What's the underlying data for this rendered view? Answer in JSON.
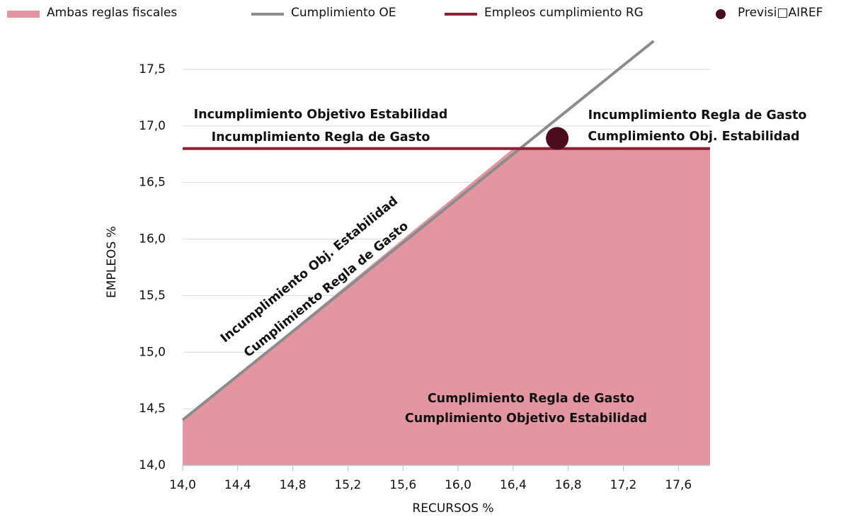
{
  "chart_data": {
    "type": "line",
    "xlabel": "RECURSOS %",
    "ylabel": "EMPLEOS %",
    "xlim": [
      14.0,
      17.83
    ],
    "ylim": [
      14.0,
      17.75
    ],
    "xticks": [
      {
        "value": 14.0,
        "label": "14,0"
      },
      {
        "value": 14.4,
        "label": "14,4"
      },
      {
        "value": 14.8,
        "label": "14,8"
      },
      {
        "value": 15.2,
        "label": "15,2"
      },
      {
        "value": 15.6,
        "label": "15,6"
      },
      {
        "value": 16.0,
        "label": "16,0"
      },
      {
        "value": 16.4,
        "label": "16,4"
      },
      {
        "value": 16.8,
        "label": "16,8"
      },
      {
        "value": 17.2,
        "label": "17,2"
      },
      {
        "value": 17.6,
        "label": "17,6"
      }
    ],
    "yticks": [
      {
        "value": 14.0,
        "label": "14,0"
      },
      {
        "value": 14.5,
        "label": "14,5"
      },
      {
        "value": 15.0,
        "label": "15,0"
      },
      {
        "value": 15.5,
        "label": "15,5"
      },
      {
        "value": 16.0,
        "label": "16,0"
      },
      {
        "value": 16.5,
        "label": "16,5"
      },
      {
        "value": 17.0,
        "label": "17,0"
      },
      {
        "value": 17.5,
        "label": "17,5"
      }
    ],
    "grid": true,
    "series": [
      {
        "name": "Ambas reglas fiscales",
        "kind": "area",
        "color": "#e396a0",
        "x": [
          14.0,
          16.4,
          17.83
        ],
        "values": [
          14.4,
          16.8,
          16.8
        ]
      },
      {
        "name": "Cumplimiento OE",
        "kind": "line",
        "color": "#8c8c8c",
        "x": [
          14.0,
          17.42
        ],
        "values": [
          14.4,
          17.75
        ]
      },
      {
        "name": "Empleos cumplimiento RG",
        "kind": "line",
        "color": "#8b2332",
        "x": [
          14.0,
          17.83
        ],
        "values": [
          16.8,
          16.8
        ]
      },
      {
        "name": "Previsi□AIREF",
        "kind": "point",
        "color": "#4a0d1e",
        "x": [
          16.72
        ],
        "values": [
          16.89
        ]
      }
    ],
    "annotations": [
      "Incumplimiento Objetivo Estabilidad",
      "Incumplimiento Regla de Gasto",
      "Incumplimiento Regla de Gasto",
      "Cumplimiento Obj. Estabilidad",
      "Incumplimiento Obj. Estabilidad",
      "Cumplimiento Regla de Gasto",
      "Cumplimiento Regla de Gasto",
      "Cumplimiento Objetivo Estabilidad"
    ]
  }
}
